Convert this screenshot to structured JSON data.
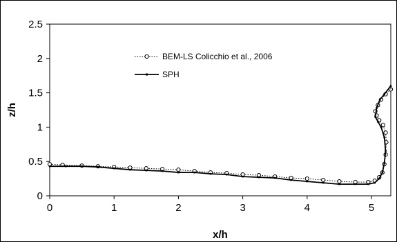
{
  "chart_data": {
    "type": "line",
    "xlabel": "x/h",
    "ylabel": "z/h",
    "xlim": [
      0,
      5.3
    ],
    "ylim": [
      0,
      2.5
    ],
    "xticks": [
      "0",
      "1",
      "2",
      "3",
      "4",
      "5"
    ],
    "yticks": [
      "0",
      "0.5",
      "1",
      "1.5",
      "2",
      "2.5"
    ],
    "grid": false,
    "legend_position": "upper-middle",
    "series": [
      {
        "name": "BEM-LS Colicchio et al., 2006",
        "style": "dotted line with open circle markers",
        "color": "#000000",
        "x": [
          0,
          0.2,
          0.5,
          0.75,
          1.0,
          1.25,
          1.5,
          1.75,
          2.0,
          2.25,
          2.5,
          2.75,
          3.0,
          3.25,
          3.5,
          3.75,
          4.0,
          4.25,
          4.5,
          4.75,
          4.95,
          5.05,
          5.12,
          5.17,
          5.2,
          5.22,
          5.23,
          5.22,
          5.18,
          5.12,
          5.08,
          5.06,
          5.1,
          5.15,
          5.22,
          5.3
        ],
        "y": [
          0.46,
          0.45,
          0.44,
          0.43,
          0.42,
          0.41,
          0.4,
          0.39,
          0.38,
          0.36,
          0.34,
          0.33,
          0.31,
          0.3,
          0.28,
          0.26,
          0.25,
          0.23,
          0.21,
          0.2,
          0.2,
          0.22,
          0.27,
          0.34,
          0.46,
          0.6,
          0.78,
          0.92,
          1.03,
          1.1,
          1.17,
          1.23,
          1.32,
          1.4,
          1.48,
          1.55
        ]
      },
      {
        "name": "SPH",
        "style": "solid line with small filled markers",
        "color": "#000000",
        "x": [
          0,
          0.25,
          0.5,
          0.75,
          1.0,
          1.25,
          1.5,
          1.75,
          2.0,
          2.25,
          2.5,
          2.75,
          3.0,
          3.25,
          3.5,
          3.75,
          4.0,
          4.25,
          4.5,
          4.75,
          4.95,
          5.05,
          5.12,
          5.17,
          5.2,
          5.22,
          5.2,
          5.15,
          5.1,
          5.06,
          5.08,
          5.13,
          5.2,
          5.3
        ],
        "y": [
          0.43,
          0.43,
          0.43,
          0.42,
          0.4,
          0.38,
          0.37,
          0.36,
          0.34,
          0.34,
          0.32,
          0.31,
          0.28,
          0.27,
          0.26,
          0.23,
          0.21,
          0.19,
          0.17,
          0.17,
          0.17,
          0.19,
          0.25,
          0.34,
          0.48,
          0.65,
          0.85,
          1.0,
          1.08,
          1.15,
          1.28,
          1.4,
          1.48,
          1.6
        ]
      }
    ]
  }
}
